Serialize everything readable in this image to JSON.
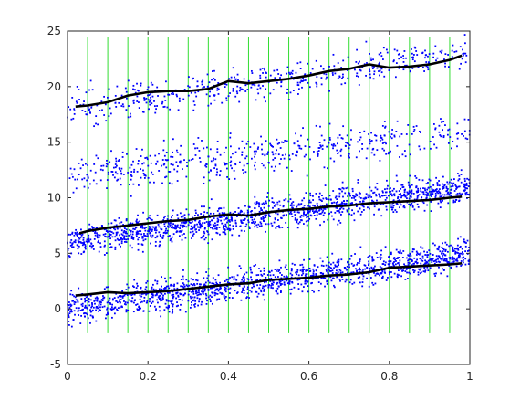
{
  "chart_data": {
    "type": "scatter",
    "title": "",
    "xlabel": "",
    "ylabel": "",
    "xlim": [
      0,
      1
    ],
    "ylim": [
      -5,
      25
    ],
    "x_ticks": [
      0,
      0.2,
      0.4,
      0.6,
      0.8,
      1
    ],
    "x_tick_labels": [
      "0",
      "0.2",
      "0.4",
      "0.6",
      "0.8",
      "1"
    ],
    "y_ticks": [
      -5,
      0,
      5,
      10,
      15,
      20,
      25
    ],
    "y_tick_labels": [
      "-5",
      "0",
      "5",
      "10",
      "15",
      "20",
      "25"
    ],
    "grid": false,
    "legend": "none",
    "colors": {
      "points": "#0000ff",
      "curves": "#000000",
      "vlines": "#33dd33",
      "axes": "#262626"
    },
    "vertical_lines": {
      "x": [
        0.05,
        0.1,
        0.15,
        0.2,
        0.25,
        0.3,
        0.35,
        0.4,
        0.45,
        0.5,
        0.55,
        0.6,
        0.65,
        0.7,
        0.75,
        0.8,
        0.85,
        0.9,
        0.95
      ],
      "y_range": [
        -2.2,
        24.5
      ]
    },
    "point_clusters": [
      {
        "x_range": [
          0,
          1
        ],
        "y_start": 0.0,
        "y_end": 5.0,
        "spread": 1.0,
        "count": 1400
      },
      {
        "x_range": [
          0,
          1
        ],
        "y_start": 6.0,
        "y_end": 11.0,
        "spread": 1.0,
        "count": 1400
      },
      {
        "x_range": [
          0,
          1
        ],
        "y_start": 12.0,
        "y_end": 16.0,
        "spread": 1.3,
        "count": 500
      },
      {
        "x_range": [
          0,
          1
        ],
        "y_start": 18.0,
        "y_end": 23.0,
        "spread": 1.1,
        "count": 500
      }
    ],
    "series": [
      {
        "x": [
          0.02,
          0.05,
          0.1,
          0.15,
          0.2,
          0.25,
          0.3,
          0.35,
          0.4,
          0.45,
          0.5,
          0.55,
          0.6,
          0.65,
          0.7,
          0.75,
          0.8,
          0.85,
          0.9,
          0.95,
          0.98
        ],
        "values": [
          1.2,
          1.3,
          1.5,
          1.4,
          1.5,
          1.6,
          1.8,
          2.0,
          2.2,
          2.3,
          2.6,
          2.7,
          2.8,
          3.0,
          3.1,
          3.3,
          3.7,
          3.8,
          3.9,
          4.0,
          4.1
        ]
      },
      {
        "x": [
          0.03,
          0.05,
          0.1,
          0.15,
          0.2,
          0.25,
          0.3,
          0.35,
          0.4,
          0.45,
          0.5,
          0.55,
          0.6,
          0.65,
          0.7,
          0.75,
          0.8,
          0.85,
          0.9,
          0.95,
          0.98
        ],
        "values": [
          6.8,
          7.0,
          7.3,
          7.5,
          7.7,
          7.9,
          8.0,
          8.3,
          8.5,
          8.4,
          8.7,
          8.9,
          9.0,
          9.2,
          9.3,
          9.5,
          9.6,
          9.7,
          9.8,
          10.0,
          10.1
        ]
      },
      {
        "x": [
          0.02,
          0.05,
          0.1,
          0.15,
          0.2,
          0.25,
          0.3,
          0.35,
          0.4,
          0.45,
          0.5,
          0.55,
          0.6,
          0.65,
          0.7,
          0.75,
          0.8,
          0.85,
          0.9,
          0.95,
          0.98
        ],
        "values": [
          18.2,
          18.3,
          18.6,
          19.2,
          19.5,
          19.6,
          19.6,
          19.8,
          20.5,
          20.3,
          20.5,
          20.7,
          21.0,
          21.4,
          21.6,
          22.0,
          21.7,
          21.8,
          22.0,
          22.4,
          22.8
        ]
      }
    ]
  }
}
